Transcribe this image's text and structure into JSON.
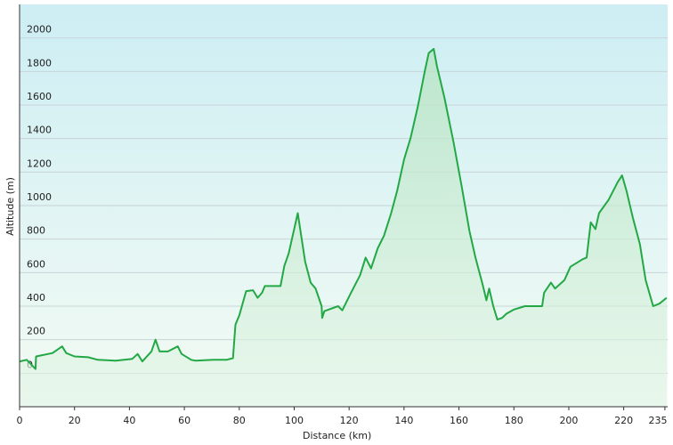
{
  "chart_data": {
    "type": "area",
    "xlabel": "Distance  (km)",
    "ylabel": "Altitude (m)",
    "x": [
      0,
      2.6,
      5.8,
      6,
      7.4,
      12,
      15.5,
      17,
      20,
      25,
      28.5,
      35,
      41,
      43,
      44.7,
      48,
      49.5,
      51,
      54,
      57.6,
      59,
      62.5,
      64,
      70.5,
      75.4,
      77.7,
      78.6,
      80,
      82.5,
      85,
      86.7,
      88.3,
      89.3,
      95,
      96.4,
      98,
      101.3,
      104,
      106,
      107.8,
      110,
      110.2,
      111,
      116,
      117.5,
      120.7,
      124,
      126,
      128,
      130.4,
      132.7,
      135.3,
      137.5,
      140,
      142.4,
      145,
      147.6,
      149,
      150.8,
      152,
      154.7,
      158,
      161,
      163.8,
      166,
      168.6,
      170,
      171,
      172.5,
      174,
      175.7,
      177.3,
      180,
      184,
      190.3,
      191,
      193.5,
      195,
      198.4,
      200.6,
      205,
      206.5,
      208,
      209.7,
      211,
      214.5,
      217.8,
      219.4,
      221,
      223.3,
      225.9,
      228,
      230.7,
      233,
      235.6
    ],
    "values": [
      70,
      80,
      25,
      100,
      105,
      120,
      160,
      120,
      100,
      95,
      80,
      75,
      85,
      115,
      70,
      130,
      200,
      130,
      130,
      160,
      115,
      80,
      75,
      80,
      80,
      90,
      290,
      345,
      490,
      495,
      450,
      480,
      520,
      520,
      640,
      715,
      955,
      665,
      540,
      505,
      400,
      330,
      370,
      400,
      375,
      480,
      585,
      690,
      625,
      745,
      820,
      955,
      1090,
      1275,
      1405,
      1590,
      1805,
      1910,
      1935,
      1830,
      1645,
      1380,
      1115,
      850,
      690,
      530,
      435,
      505,
      400,
      320,
      330,
      355,
      380,
      400,
      400,
      480,
      540,
      505,
      555,
      635,
      680,
      690,
      900,
      860,
      955,
      1035,
      1140,
      1180,
      1090,
      930,
      770,
      555,
      400,
      415,
      450
    ],
    "color": "#22a845",
    "xlim": [
      0,
      236
    ],
    "xticks": [
      0,
      20,
      40,
      60,
      80,
      100,
      120,
      140,
      160,
      180,
      200,
      220,
      235
    ],
    "ylim": [
      -200,
      2200
    ],
    "yticks": [
      0,
      200,
      400,
      600,
      800,
      1000,
      1200,
      1400,
      1600,
      1800,
      2000
    ],
    "grid": true
  }
}
